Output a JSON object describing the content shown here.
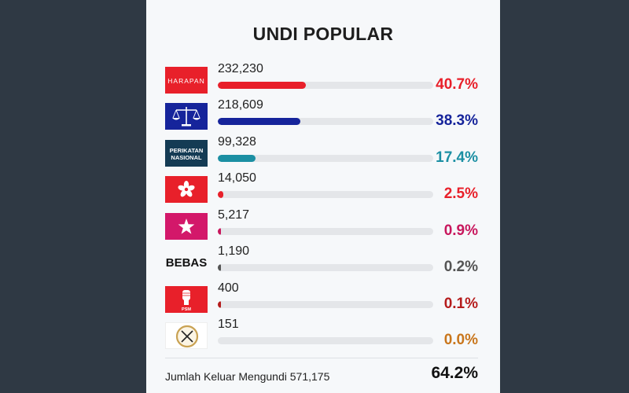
{
  "title": "UNDI POPULAR",
  "logos": {
    "harapan_text": "HARAPAN",
    "pn_line1": "PERIKATAN",
    "pn_line2": "NASIONAL",
    "bebas_text": "BEBAS",
    "psm_text": "PSM"
  },
  "footer": {
    "label": "Jumlah Keluar Mengundi 571,175",
    "percent": "64.2%"
  },
  "chart_data": {
    "type": "bar",
    "title": "UNDI POPULAR",
    "orientation": "horizontal",
    "categories": [
      "HARAPAN",
      "BN",
      "PERIKATAN NASIONAL",
      "PEJUANG",
      "WARISAN",
      "BEBAS",
      "PSM",
      "PUTRA"
    ],
    "votes_labels": [
      "232,230",
      "218,609",
      "99,328",
      "14,050",
      "5,217",
      "1,190",
      "400",
      "151"
    ],
    "values": [
      40.7,
      38.3,
      17.4,
      2.5,
      0.9,
      0.2,
      0.1,
      0.0
    ],
    "percent_labels": [
      "40.7%",
      "38.3%",
      "17.4%",
      "2.5%",
      "0.9%",
      "0.2%",
      "0.1%",
      "0.0%"
    ],
    "colors": [
      "#e8202a",
      "#16249b",
      "#1b8fa3",
      "#e8202a",
      "#c8175d",
      "#555555",
      "#b51c1c",
      "#c9761c"
    ],
    "xlim": [
      0,
      100
    ]
  }
}
